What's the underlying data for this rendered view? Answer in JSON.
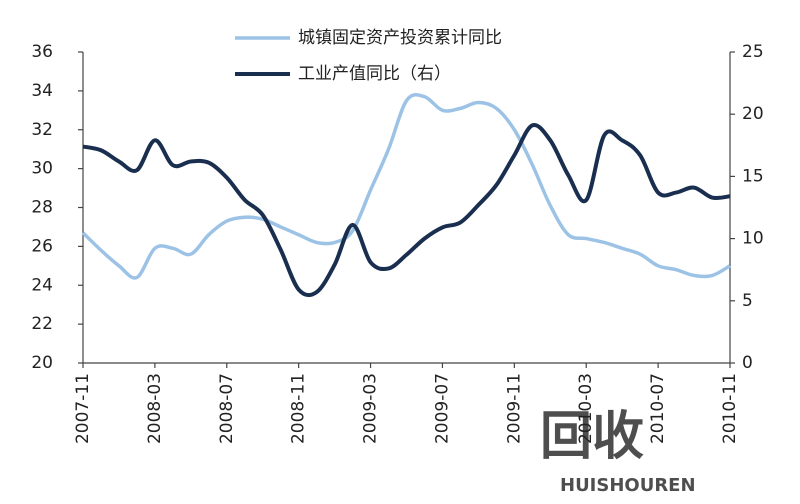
{
  "chart_data": {
    "type": "line",
    "categories": [
      "2007-11",
      null,
      null,
      null,
      "2008-03",
      null,
      null,
      null,
      "2008-07",
      null,
      null,
      null,
      "2008-11",
      null,
      null,
      null,
      "2009-03",
      null,
      null,
      null,
      "2009-07",
      null,
      null,
      null,
      "2009-11",
      null,
      null,
      null,
      "2010-03",
      null,
      null,
      null,
      "2010-07",
      null,
      null,
      null,
      "2010-11"
    ],
    "series": [
      {
        "name": "城镇固定资产投资累计同比",
        "color": "#9cc3e6",
        "values": [
          26.7,
          25.8,
          25.0,
          24.4,
          25.9,
          25.9,
          25.6,
          26.6,
          27.3,
          27.5,
          27.4,
          27.0,
          26.6,
          26.2,
          26.2,
          26.8,
          28.9,
          31.0,
          33.5,
          33.7,
          33.0,
          33.1,
          33.4,
          33.1,
          32.0,
          30.2,
          28.1,
          26.6,
          26.4,
          26.2,
          25.9,
          25.6,
          25.0,
          24.8,
          24.5,
          24.5,
          25.0
        ]
      },
      {
        "name": "工业产值同比（右）",
        "color": "#1a2f4f",
        "axis": "y2",
        "values": [
          17.4,
          17.1,
          16.2,
          15.5,
          17.9,
          15.9,
          16.2,
          16.1,
          14.9,
          13.1,
          11.9,
          9.1,
          5.9,
          5.7,
          7.9,
          11.1,
          8.1,
          7.6,
          8.7,
          10.0,
          10.9,
          11.3,
          12.7,
          14.3,
          16.7,
          19.1,
          17.9,
          15.1,
          13.1,
          18.3,
          17.9,
          16.7,
          13.7,
          13.7,
          14.1,
          13.3,
          13.4
        ]
      }
    ],
    "ylim": [
      20,
      36
    ],
    "yticks": [
      20,
      22,
      24,
      26,
      28,
      30,
      32,
      34,
      36
    ],
    "y2lim": [
      0,
      25
    ],
    "y2ticks": [
      0,
      5,
      10,
      15,
      20,
      25
    ],
    "watermark": [
      "回收",
      "HUISHOUREN"
    ]
  }
}
